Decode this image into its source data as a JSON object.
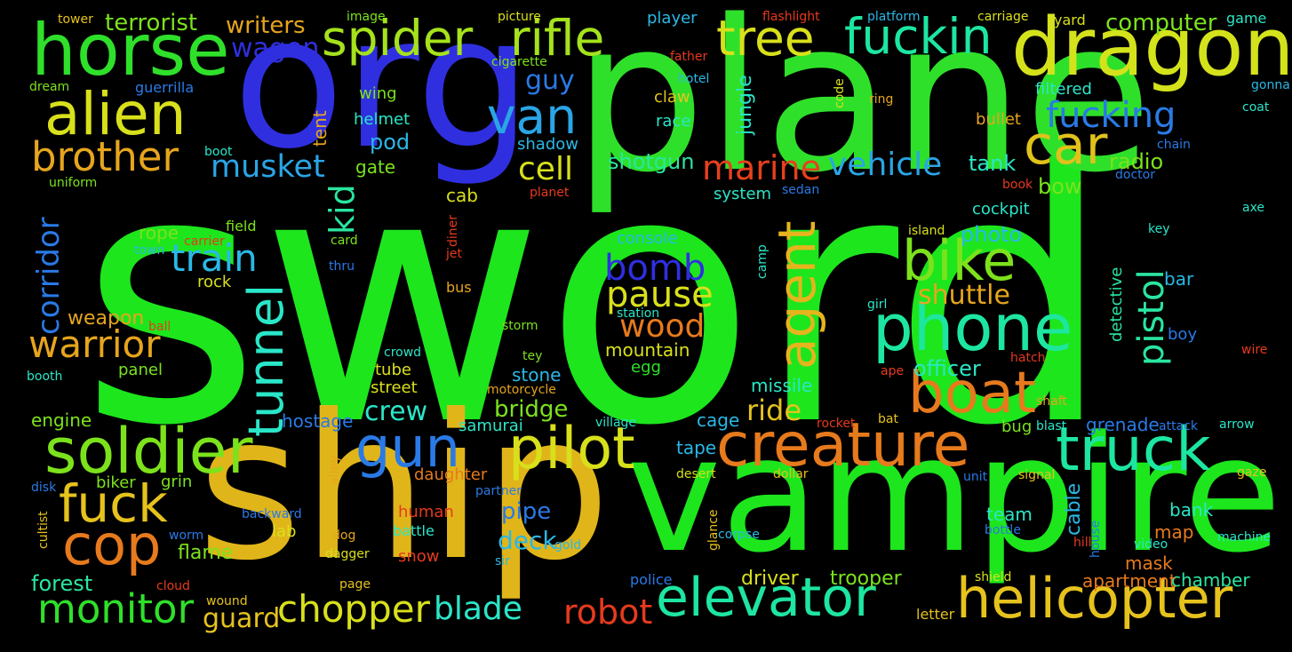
{
  "words": [
    {
      "text": "sword",
      "color": "#1de61d"
    },
    {
      "text": "plane",
      "color": "#2fe02a"
    },
    {
      "text": "ship",
      "color": "#e0b51a"
    },
    {
      "text": "vampire",
      "color": "#1de61d"
    },
    {
      "text": "org",
      "color": "#2f2fe0"
    },
    {
      "text": "dragon",
      "color": "#d4e21c"
    },
    {
      "text": "horse",
      "color": "#2fe02a"
    },
    {
      "text": "alien",
      "color": "#d8e01b"
    },
    {
      "text": "spider",
      "color": "#a5e21c"
    },
    {
      "text": "rifle",
      "color": "#a5e21c"
    },
    {
      "text": "tree",
      "color": "#d8e01b"
    },
    {
      "text": "fuckin",
      "color": "#1de6a0"
    },
    {
      "text": "van",
      "color": "#2aa5e6"
    },
    {
      "text": "car",
      "color": "#e0c21a"
    },
    {
      "text": "brother",
      "color": "#e6a51d"
    },
    {
      "text": "musket",
      "color": "#2aa5e6"
    },
    {
      "text": "fucking",
      "color": "#2a7ae6"
    },
    {
      "text": "marine",
      "color": "#e6401d"
    },
    {
      "text": "vehicle",
      "color": "#2aa5e6"
    },
    {
      "text": "cell",
      "color": "#d8e01b"
    },
    {
      "text": "bike",
      "color": "#7ce21c"
    },
    {
      "text": "agent",
      "color": "#e6b41d"
    },
    {
      "text": "phone",
      "color": "#1de6a0"
    },
    {
      "text": "boat",
      "color": "#e67a1d"
    },
    {
      "text": "train",
      "color": "#2ab8e6"
    },
    {
      "text": "tunnel",
      "color": "#2ae6c8"
    },
    {
      "text": "warrior",
      "color": "#e6a51d"
    },
    {
      "text": "soldier",
      "color": "#7ce21c"
    },
    {
      "text": "gun",
      "color": "#2a7ae6"
    },
    {
      "text": "pilot",
      "color": "#d8e01b"
    },
    {
      "text": "creature",
      "color": "#e67a1d"
    },
    {
      "text": "truck",
      "color": "#1de6a0"
    },
    {
      "text": "fuck",
      "color": "#e6c21d"
    },
    {
      "text": "cop",
      "color": "#e67a1d"
    },
    {
      "text": "monitor",
      "color": "#2fe02a"
    },
    {
      "text": "chopper",
      "color": "#d8e01b"
    },
    {
      "text": "blade",
      "color": "#2ae6c8"
    },
    {
      "text": "robot",
      "color": "#e63a1d"
    },
    {
      "text": "elevator",
      "color": "#1de6a0"
    },
    {
      "text": "helicopter",
      "color": "#e6c21d"
    },
    {
      "text": "corridor",
      "color": "#2a7ae6"
    },
    {
      "text": "kid",
      "color": "#2ae6a0"
    },
    {
      "text": "pistol",
      "color": "#2ae6a0"
    },
    {
      "text": "bomb",
      "color": "#2f2fe0"
    },
    {
      "text": "pause",
      "color": "#d8e01b"
    },
    {
      "text": "wood",
      "color": "#e67a1d"
    },
    {
      "text": "shuttle",
      "color": "#e6a51d"
    },
    {
      "text": "crew",
      "color": "#2ae6c8"
    },
    {
      "text": "ride",
      "color": "#e6c21d"
    },
    {
      "text": "bridge",
      "color": "#7ce21c"
    },
    {
      "text": "wagon",
      "color": "#2f2fe0"
    },
    {
      "text": "guy",
      "color": "#2a7ae6"
    },
    {
      "text": "terrorist",
      "color": "#7ce21c"
    },
    {
      "text": "writers",
      "color": "#e6a51d"
    },
    {
      "text": "computer",
      "color": "#7ce21c"
    },
    {
      "text": "tank",
      "color": "#2ae6c8"
    },
    {
      "text": "radio",
      "color": "#7ce21c"
    },
    {
      "text": "shotgun",
      "color": "#2ae6a0"
    },
    {
      "text": "bow",
      "color": "#7ce21c"
    },
    {
      "text": "photo",
      "color": "#2ab8e6"
    },
    {
      "text": "officer",
      "color": "#2ae6c8"
    },
    {
      "text": "pod",
      "color": "#2ab8e6"
    },
    {
      "text": "gate",
      "color": "#7ce21c"
    },
    {
      "text": "cab",
      "color": "#d8e01b"
    },
    {
      "text": "rope",
      "color": "#7ce21c"
    },
    {
      "text": "weapon",
      "color": "#e6a51d"
    },
    {
      "text": "forest",
      "color": "#2ae6a0"
    },
    {
      "text": "guard",
      "color": "#e6c21d"
    },
    {
      "text": "flame",
      "color": "#7ce21c"
    },
    {
      "text": "engine",
      "color": "#7ce21c"
    },
    {
      "text": "pipe",
      "color": "#2a7ae6"
    },
    {
      "text": "deck",
      "color": "#2ab8e6"
    },
    {
      "text": "team",
      "color": "#2ae6c8"
    },
    {
      "text": "bank",
      "color": "#2ae6c8"
    },
    {
      "text": "cage",
      "color": "#2ab8e6"
    },
    {
      "text": "tape",
      "color": "#2ab8e6"
    },
    {
      "text": "driver",
      "color": "#d8e01b"
    },
    {
      "text": "trooper",
      "color": "#7ce21c"
    },
    {
      "text": "chamber",
      "color": "#2ae6a0"
    },
    {
      "text": "apartment",
      "color": "#e67a1d"
    },
    {
      "text": "mask",
      "color": "#e67a1d"
    },
    {
      "text": "map",
      "color": "#e67a1d"
    },
    {
      "text": "cable",
      "color": "#2ab8e6"
    },
    {
      "text": "grenade",
      "color": "#2a7ae6"
    },
    {
      "text": "missile",
      "color": "#2ae6c8"
    },
    {
      "text": "bug",
      "color": "#7ce21c"
    },
    {
      "text": "lab",
      "color": "#d8e01b"
    },
    {
      "text": "human",
      "color": "#e63a1d"
    },
    {
      "text": "daughter",
      "color": "#e67a1d"
    },
    {
      "text": "tube",
      "color": "#d8e01b"
    },
    {
      "text": "street",
      "color": "#d8e01b"
    },
    {
      "text": "stone",
      "color": "#2ab8e6"
    },
    {
      "text": "hostage",
      "color": "#2a7ae6"
    },
    {
      "text": "panel",
      "color": "#7ce21c"
    },
    {
      "text": "mountain",
      "color": "#d8e01b"
    },
    {
      "text": "egg",
      "color": "#2fe02a"
    },
    {
      "text": "console",
      "color": "#2ab8e6"
    },
    {
      "text": "system",
      "color": "#2ae6c8"
    },
    {
      "text": "cockpit",
      "color": "#2ae6c8"
    },
    {
      "text": "jungle",
      "color": "#2ae6c8"
    },
    {
      "text": "tent",
      "color": "#e6a51d"
    },
    {
      "text": "helmet",
      "color": "#2ae6c8"
    },
    {
      "text": "wing",
      "color": "#7ce21c"
    },
    {
      "text": "bullet",
      "color": "#e6a51d"
    },
    {
      "text": "filtered",
      "color": "#2ae6c8"
    },
    {
      "text": "race",
      "color": "#2ae6c8"
    },
    {
      "text": "claw",
      "color": "#e6c21d"
    },
    {
      "text": "shadow",
      "color": "#2ab8e6"
    },
    {
      "text": "detective",
      "color": "#2ae6a0"
    },
    {
      "text": "bar",
      "color": "#2ab8e6"
    },
    {
      "text": "boy",
      "color": "#2a7ae6"
    },
    {
      "text": "ape",
      "color": "#e63a1d"
    },
    {
      "text": "hatch",
      "color": "#e63a1d"
    },
    {
      "text": "shaft",
      "color": "#e6a51d"
    },
    {
      "text": "samurai",
      "color": "#2ae6c8"
    },
    {
      "text": "ball",
      "color": "#e63a1d"
    },
    {
      "text": "storm",
      "color": "#7ce21c"
    },
    {
      "text": "crowd",
      "color": "#2ae6c8"
    },
    {
      "text": "tey",
      "color": "#7ce21c"
    },
    {
      "text": "motorcycle",
      "color": "#e6a51d"
    },
    {
      "text": "village",
      "color": "#2ae6c8"
    },
    {
      "text": "rocket",
      "color": "#e63a1d"
    },
    {
      "text": "bat",
      "color": "#e6c21d"
    },
    {
      "text": "blast",
      "color": "#2ae6c8"
    },
    {
      "text": "attack",
      "color": "#2a7ae6"
    },
    {
      "text": "arrow",
      "color": "#2ae6c8"
    },
    {
      "text": "desert",
      "color": "#d8e01b"
    },
    {
      "text": "dollar",
      "color": "#e6c21d"
    },
    {
      "text": "unit",
      "color": "#2a7ae6"
    },
    {
      "text": "signal",
      "color": "#e6c21d"
    },
    {
      "text": "gaze",
      "color": "#e6c21d"
    },
    {
      "text": "machine",
      "color": "#2ae6c8"
    },
    {
      "text": "video",
      "color": "#2ae6c8"
    },
    {
      "text": "hill",
      "color": "#e63a1d"
    },
    {
      "text": "bottle",
      "color": "#2a7ae6"
    },
    {
      "text": "house",
      "color": "#2a7ae6"
    },
    {
      "text": "shield",
      "color": "#d8e01b"
    },
    {
      "text": "letter",
      "color": "#e6c21d"
    },
    {
      "text": "police",
      "color": "#2a7ae6"
    },
    {
      "text": "corpse",
      "color": "#2ab8e6"
    },
    {
      "text": "glance",
      "color": "#e6c21d"
    },
    {
      "text": "gold",
      "color": "#2ab8e6"
    },
    {
      "text": "sir",
      "color": "#2ab8e6"
    },
    {
      "text": "partner",
      "color": "#2a7ae6"
    },
    {
      "text": "snow",
      "color": "#e63a1d"
    },
    {
      "text": "battle",
      "color": "#2ae6c8"
    },
    {
      "text": "dog",
      "color": "#e6a51d"
    },
    {
      "text": "dagger",
      "color": "#d8e01b"
    },
    {
      "text": "page",
      "color": "#e6c21d"
    },
    {
      "text": "cloud",
      "color": "#e63a1d"
    },
    {
      "text": "wound",
      "color": "#e6c21d"
    },
    {
      "text": "worm",
      "color": "#2a7ae6"
    },
    {
      "text": "backward",
      "color": "#2a7ae6"
    },
    {
      "text": "biker",
      "color": "#7ce21c"
    },
    {
      "text": "grin",
      "color": "#7ce21c"
    },
    {
      "text": "alley",
      "color": "#e6a51d"
    },
    {
      "text": "cultist",
      "color": "#e6c21d"
    },
    {
      "text": "disk",
      "color": "#2a7ae6"
    },
    {
      "text": "booth",
      "color": "#2ae6c8"
    },
    {
      "text": "bus",
      "color": "#e6a51d"
    },
    {
      "text": "jet",
      "color": "#e63a1d"
    },
    {
      "text": "diner",
      "color": "#e63a1d"
    },
    {
      "text": "thru",
      "color": "#2a7ae6"
    },
    {
      "text": "card",
      "color": "#7ce21c"
    },
    {
      "text": "rock",
      "color": "#d8e01b"
    },
    {
      "text": "town",
      "color": "#2ab8e6"
    },
    {
      "text": "carrier",
      "color": "#e63a1d"
    },
    {
      "text": "field",
      "color": "#7ce21c"
    },
    {
      "text": "uniform",
      "color": "#7ce21c"
    },
    {
      "text": "boot",
      "color": "#2ae6c8"
    },
    {
      "text": "guerrilla",
      "color": "#2a7ae6"
    },
    {
      "text": "dream",
      "color": "#7ce21c"
    },
    {
      "text": "tower",
      "color": "#e6c21d"
    },
    {
      "text": "image",
      "color": "#7ce21c"
    },
    {
      "text": "cigarette",
      "color": "#7ce21c"
    },
    {
      "text": "picture",
      "color": "#d8e01b"
    },
    {
      "text": "player",
      "color": "#2ab8e6"
    },
    {
      "text": "flashlight",
      "color": "#e63a1d"
    },
    {
      "text": "platform",
      "color": "#2ab8e6"
    },
    {
      "text": "carriage",
      "color": "#d8e01b"
    },
    {
      "text": "yard",
      "color": "#d8e01b"
    },
    {
      "text": "game",
      "color": "#2ae6c8"
    },
    {
      "text": "father",
      "color": "#e63a1d"
    },
    {
      "text": "hotel",
      "color": "#2ab8e6"
    },
    {
      "text": "code",
      "color": "#d8e01b"
    },
    {
      "text": "ring",
      "color": "#e6a51d"
    },
    {
      "text": "gonna",
      "color": "#2ab8e6"
    },
    {
      "text": "coat",
      "color": "#2ae6c8"
    },
    {
      "text": "chain",
      "color": "#2a7ae6"
    },
    {
      "text": "doctor",
      "color": "#2a7ae6"
    },
    {
      "text": "book",
      "color": "#e63a1d"
    },
    {
      "text": "sedan",
      "color": "#2a7ae6"
    },
    {
      "text": "axe",
      "color": "#2ae6c8"
    },
    {
      "text": "key",
      "color": "#2ae6c8"
    },
    {
      "text": "island",
      "color": "#d8e01b"
    },
    {
      "text": "planet",
      "color": "#e63a1d"
    },
    {
      "text": "camp",
      "color": "#2ae6c8"
    },
    {
      "text": "station",
      "color": "#2ae6c8"
    },
    {
      "text": "girl",
      "color": "#2ae6c8"
    },
    {
      "text": "wire",
      "color": "#e63a1d"
    }
  ]
}
